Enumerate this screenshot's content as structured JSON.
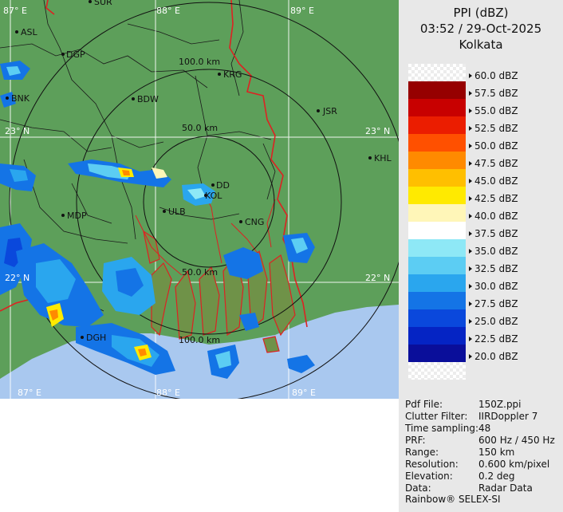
{
  "header": {
    "product": "PPI (dBZ)",
    "datetime": "03:52 / 29-Oct-2025",
    "station": "Kolkata"
  },
  "colors": {
    "land": "#5d9f5a",
    "sea": "#a9c8ef",
    "grid": "#ffffff",
    "rings": "#111111",
    "border": "#dd2222"
  },
  "scale": {
    "steps": [
      {
        "label": "60.0 dBZ",
        "color": "none"
      },
      {
        "label": "57.5 dBZ",
        "color": "#960000"
      },
      {
        "label": "55.0 dBZ",
        "color": "#c80000"
      },
      {
        "label": "52.5 dBZ",
        "color": "#eb1d00"
      },
      {
        "label": "50.0 dBZ",
        "color": "#ff5000"
      },
      {
        "label": "47.5 dBZ",
        "color": "#ff8a00"
      },
      {
        "label": "45.0 dBZ",
        "color": "#ffbf00"
      },
      {
        "label": "42.5 dBZ",
        "color": "#ffea00"
      },
      {
        "label": "40.0 dBZ",
        "color": "#fff6b8"
      },
      {
        "label": "37.5 dBZ",
        "color": "#ffffff"
      },
      {
        "label": "35.0 dBZ",
        "color": "#8ee8f6"
      },
      {
        "label": "32.5 dBZ",
        "color": "#5ccdf3"
      },
      {
        "label": "30.0 dBZ",
        "color": "#2aa6ee"
      },
      {
        "label": "27.5 dBZ",
        "color": "#1474e6"
      },
      {
        "label": "25.0 dBZ",
        "color": "#0a48dc"
      },
      {
        "label": "22.5 dBZ",
        "color": "#0524c4"
      },
      {
        "label": "20.0 dBZ",
        "color": "#0a0e9a"
      },
      {
        "label": "",
        "color": "none"
      }
    ]
  },
  "info": [
    {
      "key": "Pdf File:",
      "value": "150Z.ppi"
    },
    {
      "key": "Clutter Filter:",
      "value": "IIRDoppler 7"
    },
    {
      "key": "Time sampling:",
      "value": "48"
    },
    {
      "key": "PRF:",
      "value": "600 Hz / 450 Hz"
    },
    {
      "key": "Range:",
      "value": "150 km"
    },
    {
      "key": "Resolution:",
      "value": "0.600 km/pixel"
    },
    {
      "key": "Elevation:",
      "value": "0.2 deg"
    },
    {
      "key": "Data:",
      "value": "Radar Data"
    }
  ],
  "footer": "Rainbow® SELEX-SI",
  "map": {
    "lon_labels_top": [
      "87° E",
      "88° E",
      "89° E"
    ],
    "lon_labels_bottom": [
      "87° E",
      "88° E",
      "89° E"
    ],
    "lat_labels_left": [
      "23° N",
      "22° N"
    ],
    "lat_labels_right": [
      "23° N",
      "22° N"
    ],
    "range_rings": [
      "50.0 km",
      "100.0 km",
      "50.0 km",
      "100.0 km"
    ],
    "places": [
      "ASL",
      "DGP",
      "BNK",
      "BDW",
      "KRG",
      "JSR",
      "KHL",
      "DD",
      "KOL",
      "ULB",
      "MDP",
      "CNG",
      "DGH",
      "SUR"
    ]
  }
}
